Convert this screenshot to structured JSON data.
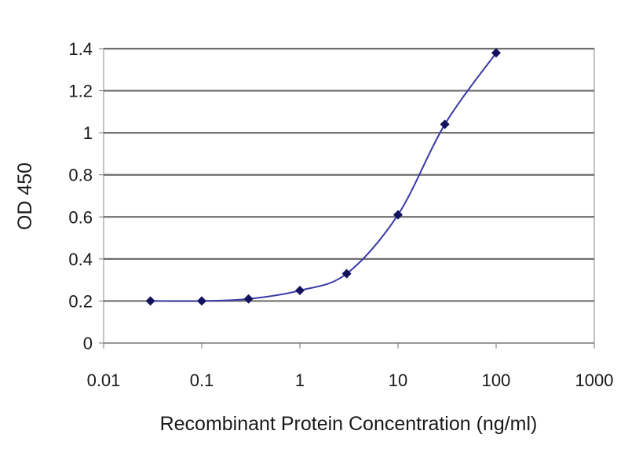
{
  "chart_data": {
    "type": "scatter",
    "title": "",
    "xlabel": "Recombinant Protein Concentration (ng/ml)",
    "ylabel": "OD 450",
    "x_scale": "log",
    "xlim": [
      0.01,
      1000
    ],
    "ylim": [
      0,
      1.4
    ],
    "x_ticks": [
      0.01,
      0.1,
      1,
      10,
      100,
      1000
    ],
    "x_tick_labels": [
      "0.01",
      "0.1",
      "1",
      "10",
      "100",
      "1000"
    ],
    "y_ticks": [
      0,
      0.2,
      0.4,
      0.6,
      0.8,
      1,
      1.2,
      1.4
    ],
    "y_tick_labels": [
      "0",
      "0.2",
      "0.4",
      "0.6",
      "0.8",
      "1",
      "1.2",
      "1.4"
    ],
    "grid": "horizontal",
    "legend": "none",
    "series": [
      {
        "x": [
          0.03,
          0.1,
          0.3,
          1,
          3,
          10,
          30,
          100
        ],
        "y": [
          0.2,
          0.2,
          0.21,
          0.25,
          0.33,
          0.61,
          1.04,
          1.38
        ],
        "style": "markers-with-smooth-line",
        "marker": "diamond",
        "marker_color": "#12125e",
        "line_color": "#3a3aa8"
      }
    ],
    "colors": {
      "gridline": "#6e6e6e",
      "axis": "#777777",
      "plot_background": "#ffffff"
    }
  }
}
